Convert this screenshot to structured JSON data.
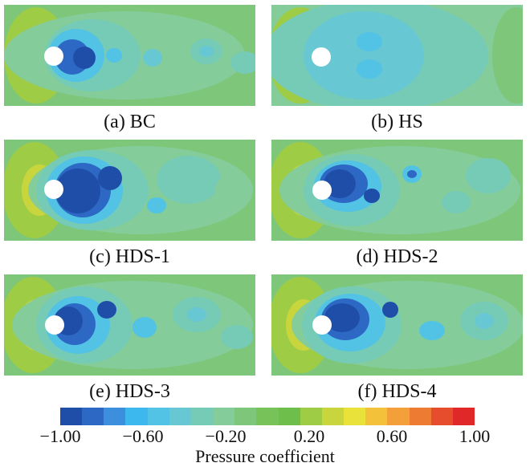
{
  "panels": [
    {
      "id": "a",
      "caption": "(a) BC"
    },
    {
      "id": "b",
      "caption": "(b) HS"
    },
    {
      "id": "c",
      "caption": "(c) HDS-1"
    },
    {
      "id": "d",
      "caption": "(d) HDS-2"
    },
    {
      "id": "e",
      "caption": "(e) HDS-3"
    },
    {
      "id": "f",
      "caption": "(f) HDS-4"
    }
  ],
  "colorbar": {
    "title": "Pressure coefficient",
    "min": -1.0,
    "max": 1.0,
    "ticks": [
      "−1.00",
      "−0.60",
      "−0.20",
      "0.20",
      "0.60",
      "1.00"
    ],
    "colors": [
      "#1f4ea8",
      "#2d69c4",
      "#3c8fdc",
      "#3db8ee",
      "#52c3e4",
      "#67c7d2",
      "#76cbb7",
      "#84cd9a",
      "#7ec67a",
      "#78c25a",
      "#6dbe4a",
      "#9fcc45",
      "#c9d53c",
      "#e8e23a",
      "#f3c23a",
      "#f3a03a",
      "#ee7b32",
      "#e54d2d",
      "#e02828"
    ]
  }
}
